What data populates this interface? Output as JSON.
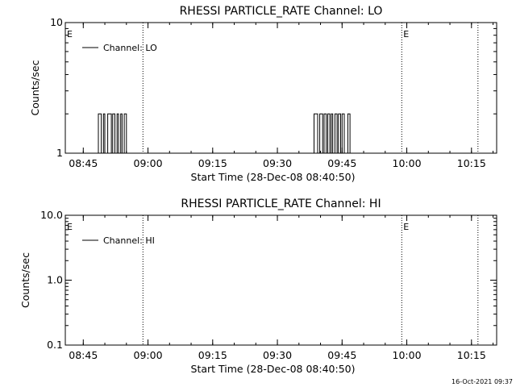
{
  "timestamp": "16-Oct-2021 09:37",
  "chart_data": [
    {
      "type": "line",
      "title": "RHESSI PARTICLE_RATE Channel: LO",
      "xlabel": "Start Time (28-Dec-08 08:40:50)",
      "ylabel": "Counts/sec",
      "yscale": "log",
      "xlim": [
        "08:40:50",
        "10:20:50"
      ],
      "ylim": [
        1,
        10
      ],
      "x_ticks": [
        "08:45",
        "09:00",
        "09:15",
        "09:30",
        "09:45",
        "10:00",
        "10:15"
      ],
      "y_ticks": [
        "1",
        "10"
      ],
      "legend": {
        "placement": "top-left",
        "entries": [
          "Channel: LO"
        ]
      },
      "event_markers": [
        {
          "time": "08:40:50",
          "label": "E",
          "dotted": false
        },
        {
          "time": "08:58:50",
          "label": "",
          "dotted": true
        },
        {
          "time": "09:58:50",
          "label": "E",
          "dotted": true
        },
        {
          "time": "10:16:30",
          "label": "",
          "dotted": true
        }
      ],
      "series": [
        {
          "name": "Channel: LO",
          "color": "#000000",
          "steps": [
            [
              "08:48:00",
              1
            ],
            [
              "08:48:30",
              2
            ],
            [
              "08:49:10",
              1
            ],
            [
              "08:49:40",
              2
            ],
            [
              "08:50:00",
              1
            ],
            [
              "08:50:40",
              2
            ],
            [
              "08:51:30",
              1
            ],
            [
              "08:51:50",
              2
            ],
            [
              "08:52:20",
              1
            ],
            [
              "08:52:50",
              2
            ],
            [
              "08:53:10",
              1
            ],
            [
              "08:53:40",
              2
            ],
            [
              "08:54:00",
              1
            ],
            [
              "08:54:30",
              2
            ],
            [
              "08:55:00",
              1
            ],
            [
              "09:38:30",
              2
            ],
            [
              "09:39:20",
              1
            ],
            [
              "09:39:50",
              2
            ],
            [
              "09:40:30",
              1
            ],
            [
              "09:40:50",
              2
            ],
            [
              "09:41:20",
              1
            ],
            [
              "09:41:40",
              2
            ],
            [
              "09:42:10",
              1
            ],
            [
              "09:42:30",
              2
            ],
            [
              "09:42:50",
              1
            ],
            [
              "09:43:20",
              2
            ],
            [
              "09:43:50",
              1
            ],
            [
              "09:44:10",
              2
            ],
            [
              "09:44:40",
              1
            ],
            [
              "09:45:00",
              2
            ],
            [
              "09:45:30",
              1
            ],
            [
              "09:46:20",
              2
            ],
            [
              "09:46:50",
              1
            ]
          ]
        }
      ]
    },
    {
      "type": "line",
      "title": "RHESSI PARTICLE_RATE Channel: HI",
      "xlabel": "Start Time (28-Dec-08 08:40:50)",
      "ylabel": "Counts/sec",
      "yscale": "log",
      "xlim": [
        "08:40:50",
        "10:20:50"
      ],
      "ylim": [
        0.1,
        10
      ],
      "x_ticks": [
        "08:45",
        "09:00",
        "09:15",
        "09:30",
        "09:45",
        "10:00",
        "10:15"
      ],
      "y_ticks": [
        "0.1",
        "1.0",
        "10.0"
      ],
      "legend": {
        "placement": "top-left",
        "entries": [
          "Channel: HI"
        ]
      },
      "event_markers": [
        {
          "time": "08:40:50",
          "label": "E",
          "dotted": false
        },
        {
          "time": "08:58:50",
          "label": "",
          "dotted": true
        },
        {
          "time": "09:58:50",
          "label": "E",
          "dotted": true
        },
        {
          "time": "10:16:30",
          "label": "",
          "dotted": true
        }
      ],
      "series": [
        {
          "name": "Channel: HI",
          "color": "#000000",
          "steps": []
        }
      ]
    }
  ]
}
